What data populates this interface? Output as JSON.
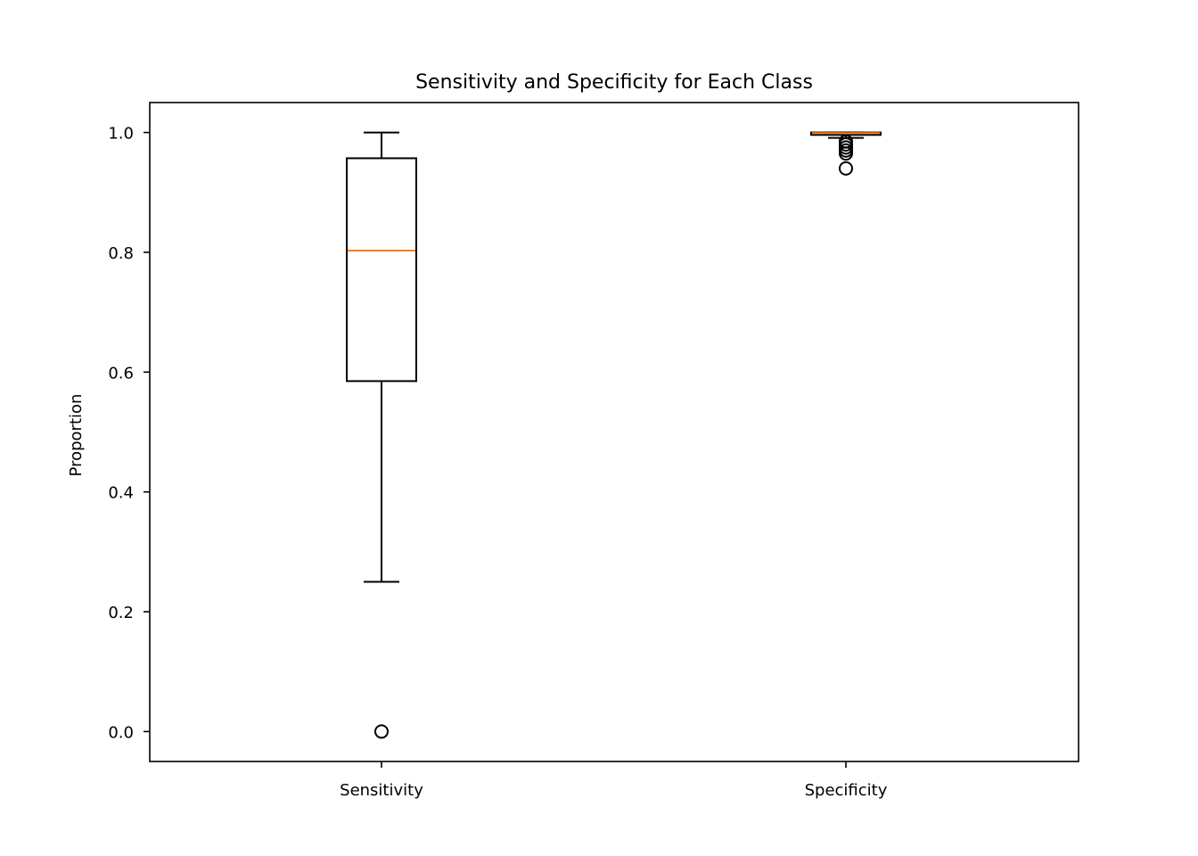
{
  "chart_data": {
    "type": "boxplot",
    "title": "Sensitivity and Specificity for Each Class",
    "xlabel": "",
    "ylabel": "Proportion",
    "ylim": [
      -0.05,
      1.05
    ],
    "yticks": [
      0.0,
      0.2,
      0.4,
      0.6,
      0.8,
      1.0
    ],
    "ytick_labels": [
      "0.0",
      "0.2",
      "0.4",
      "0.6",
      "0.8",
      "1.0"
    ],
    "grid": false,
    "categories": [
      "Sensitivity",
      "Specificity"
    ],
    "boxes": [
      {
        "label": "Sensitivity",
        "whisker_low": 0.25,
        "q1": 0.585,
        "median": 0.803,
        "q3": 0.957,
        "whisker_high": 1.0,
        "outliers": [
          0.0
        ]
      },
      {
        "label": "Specificity",
        "whisker_low": 0.991,
        "q1": 0.996,
        "median": 0.999,
        "q3": 1.0,
        "whisker_high": 1.0,
        "outliers": [
          0.94,
          0.965,
          0.97,
          0.975,
          0.98,
          0.985
        ]
      }
    ],
    "colors": {
      "box": "#000000",
      "median": "#ff7f0e",
      "outlier": "#000000"
    }
  }
}
